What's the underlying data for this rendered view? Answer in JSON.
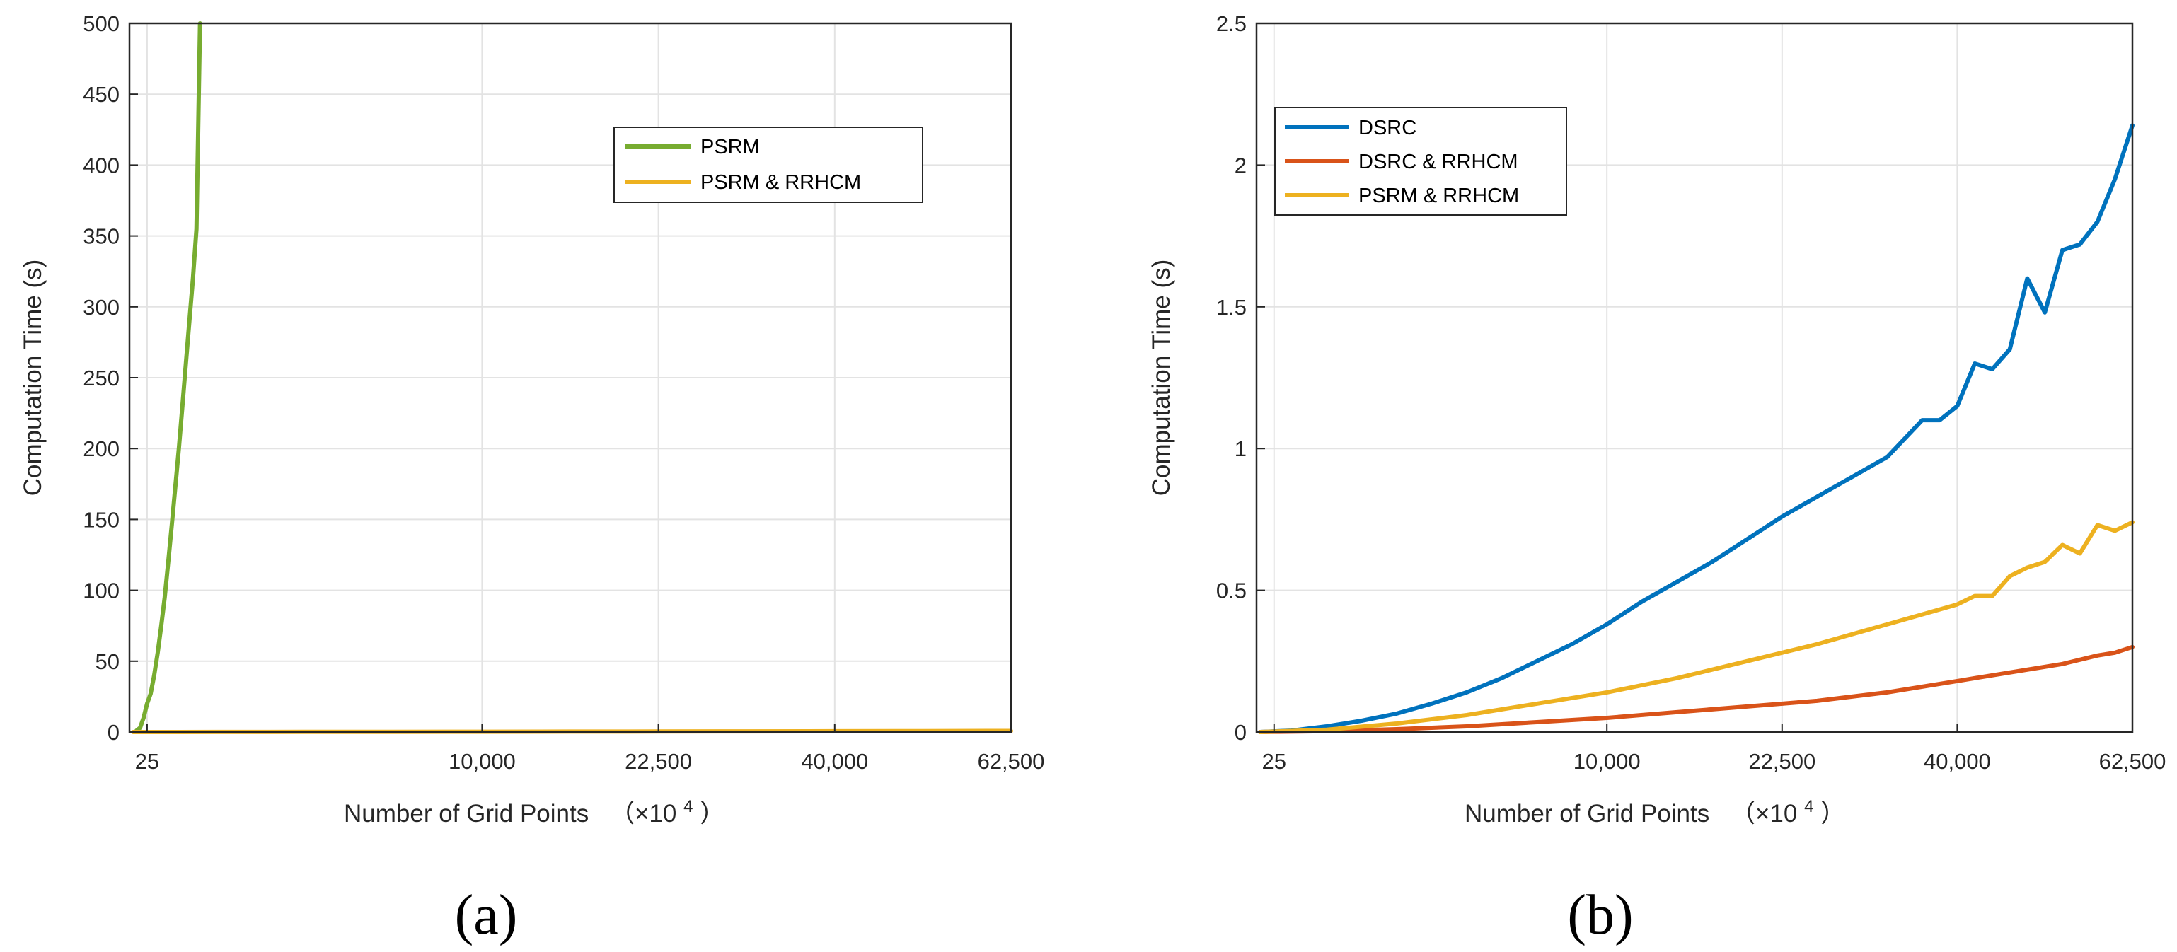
{
  "chart_data": [
    {
      "type": "line",
      "panel_label": "(a)",
      "title": "",
      "xlabel": "Number of Grid Points",
      "xlabel_unit": "（×10",
      "xlabel_exp": "4",
      "xlabel_close": "）",
      "ylabel": "Computation Time (s)",
      "xlim": [
        0,
        62500
      ],
      "ylim": [
        0,
        500
      ],
      "xticks": [
        25,
        10000,
        22500,
        40000,
        62500
      ],
      "xtick_labels": [
        "25",
        "10,000",
        "22,500",
        "40,000",
        "62,500"
      ],
      "yticks": [
        0,
        50,
        100,
        150,
        200,
        250,
        300,
        350,
        400,
        450,
        500
      ],
      "ytick_labels": [
        "0",
        "50",
        "100",
        "150",
        "200",
        "250",
        "300",
        "350",
        "400",
        "450",
        "500"
      ],
      "grid": true,
      "legend_position": "upper-right",
      "series": [
        {
          "name": "PSRM",
          "color": "#77ac30",
          "x": [
            2,
            3,
            4,
            5,
            6,
            7,
            8,
            9,
            10,
            11,
            12,
            13,
            14,
            15,
            16,
            17,
            18,
            19,
            20,
            21,
            22,
            23
          ],
          "y": [
            1,
            3,
            10,
            20,
            27,
            40,
            56,
            75,
            95,
            120,
            146,
            173,
            200,
            230,
            260,
            290,
            320,
            355,
            500,
            500,
            500,
            500
          ],
          "x_sqrt_scale": true
        },
        {
          "name": "PSRM & RRHCM",
          "color": "#edb120",
          "x": [
            1,
            25,
            50,
            75,
            100,
            125,
            150,
            175,
            200,
            225,
            250
          ],
          "y": [
            0,
            0.05,
            0.1,
            0.15,
            0.2,
            0.3,
            0.35,
            0.45,
            0.55,
            0.65,
            0.75
          ],
          "x_sqrt_scale": true
        }
      ]
    },
    {
      "type": "line",
      "panel_label": "(b)",
      "title": "",
      "xlabel": "Number of Grid Points",
      "xlabel_unit": "（×10",
      "xlabel_exp": "4",
      "xlabel_close": "）",
      "ylabel": "Computation Time (s)",
      "xlim": [
        0,
        62500
      ],
      "ylim": [
        0,
        2.5
      ],
      "xticks": [
        25,
        10000,
        22500,
        40000,
        62500
      ],
      "xtick_labels": [
        "25",
        "10,000",
        "22,500",
        "40,000",
        "62,500"
      ],
      "yticks": [
        0,
        0.5,
        1,
        1.5,
        2,
        2.5
      ],
      "ytick_labels": [
        "0",
        "0.5",
        "1",
        "1.5",
        "2",
        "2.5"
      ],
      "grid": true,
      "legend_position": "upper-left",
      "series": [
        {
          "name": "DSRC",
          "color": "#0072bd",
          "sqrt_x": [
            1,
            10,
            20,
            30,
            40,
            50,
            60,
            70,
            80,
            90,
            100,
            110,
            120,
            130,
            140,
            150,
            160,
            170,
            180,
            190,
            195,
            200,
            205,
            210,
            215,
            220,
            225,
            230,
            235,
            240,
            245,
            250
          ],
          "y": [
            0,
            0.005,
            0.02,
            0.04,
            0.065,
            0.1,
            0.14,
            0.19,
            0.25,
            0.31,
            0.38,
            0.46,
            0.53,
            0.6,
            0.68,
            0.76,
            0.83,
            0.9,
            0.97,
            1.1,
            1.1,
            1.15,
            1.3,
            1.28,
            1.35,
            1.6,
            1.48,
            1.7,
            1.72,
            1.8,
            1.95,
            2.14
          ]
        },
        {
          "name": "DSRC & RRHCM",
          "color": "#d95319",
          "sqrt_x": [
            1,
            20,
            40,
            60,
            80,
            100,
            120,
            140,
            160,
            180,
            200,
            210,
            220,
            230,
            240,
            245,
            250
          ],
          "y": [
            0,
            0.003,
            0.01,
            0.02,
            0.035,
            0.05,
            0.07,
            0.09,
            0.11,
            0.14,
            0.18,
            0.2,
            0.22,
            0.24,
            0.27,
            0.28,
            0.3
          ]
        },
        {
          "name": "PSRM & RRHCM",
          "color": "#edb120",
          "sqrt_x": [
            1,
            20,
            40,
            60,
            80,
            100,
            120,
            140,
            160,
            180,
            200,
            205,
            210,
            215,
            220,
            225,
            230,
            235,
            240,
            245,
            250
          ],
          "y": [
            0,
            0.008,
            0.03,
            0.06,
            0.1,
            0.14,
            0.19,
            0.25,
            0.31,
            0.38,
            0.45,
            0.48,
            0.48,
            0.55,
            0.58,
            0.6,
            0.66,
            0.63,
            0.73,
            0.71,
            0.74
          ]
        }
      ]
    }
  ]
}
